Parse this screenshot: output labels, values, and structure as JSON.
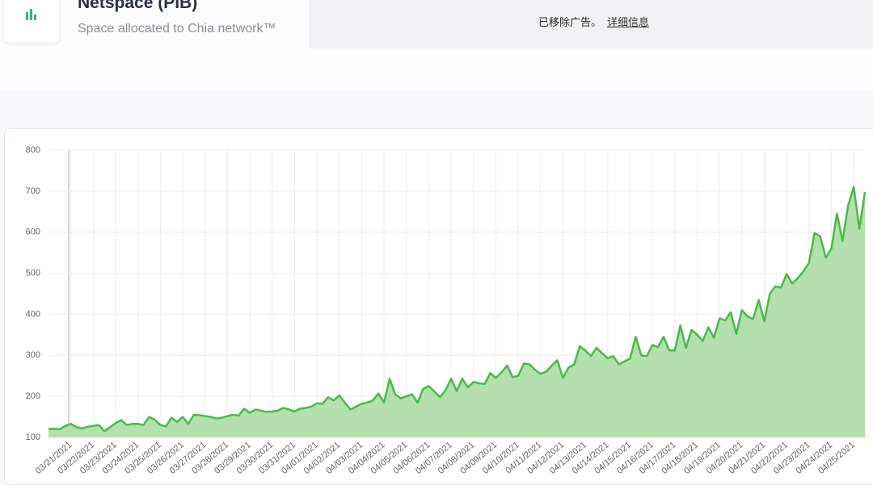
{
  "header": {
    "title": "Netspace (PIB)",
    "subtitle": "Space allocated to Chia network™"
  },
  "ad": {
    "text": "已移除广告。",
    "link": "详细信息"
  },
  "chart_data": {
    "type": "line",
    "color": "#4cb84c",
    "fill": "#b3e0ac",
    "categories": [
      null,
      null,
      null,
      null,
      "03/21/2021",
      null,
      null,
      null,
      "03/22/2021",
      null,
      null,
      null,
      "03/23/2021",
      null,
      null,
      null,
      "03/24/2021",
      null,
      null,
      null,
      "03/25/2021",
      null,
      null,
      null,
      "03/26/2021",
      null,
      null,
      null,
      "03/27/2021",
      null,
      null,
      null,
      "03/28/2021",
      null,
      null,
      null,
      "03/29/2021",
      null,
      null,
      null,
      "03/30/2021",
      null,
      null,
      null,
      "03/31/2021",
      null,
      null,
      null,
      "04/01/2021",
      null,
      null,
      null,
      "04/02/2021",
      null,
      null,
      null,
      "04/03/2021",
      null,
      null,
      null,
      "04/04/2021",
      null,
      null,
      null,
      "04/05/2021",
      null,
      null,
      null,
      "04/06/2021",
      null,
      null,
      null,
      "04/07/2021",
      null,
      null,
      null,
      "04/08/2021",
      null,
      null,
      null,
      "04/09/2021",
      null,
      null,
      null,
      "04/10/2021",
      null,
      null,
      null,
      "04/11/2021",
      null,
      null,
      null,
      "04/12/2021",
      null,
      null,
      null,
      "04/13/2021",
      null,
      null,
      null,
      "04/14/2021",
      null,
      null,
      null,
      "04/15/2021",
      null,
      null,
      null,
      "04/16/2021",
      null,
      null,
      null,
      "04/17/2021",
      null,
      null,
      null,
      "04/18/2021",
      null,
      null,
      null,
      "04/19/2021",
      null,
      null,
      null,
      "04/20/2021",
      null,
      null,
      null,
      "04/21/2021",
      null,
      null,
      null,
      "04/22/2021",
      null,
      null,
      null,
      "04/23/2021",
      null,
      null,
      null,
      "04/24/2021",
      null,
      null,
      null,
      "04/25/2021",
      null,
      null
    ],
    "values": [
      120,
      121,
      120,
      128,
      133,
      125,
      122,
      126,
      128,
      130,
      115,
      125,
      135,
      142,
      130,
      133,
      133,
      130,
      150,
      143,
      130,
      127,
      148,
      138,
      150,
      133,
      155,
      154,
      152,
      150,
      146,
      148,
      152,
      155,
      153,
      170,
      160,
      168,
      165,
      162,
      163,
      165,
      172,
      168,
      163,
      170,
      172,
      175,
      183,
      182,
      198,
      190,
      202,
      185,
      168,
      175,
      182,
      185,
      190,
      207,
      185,
      243,
      205,
      195,
      200,
      205,
      185,
      218,
      225,
      212,
      198,
      215,
      243,
      213,
      243,
      222,
      235,
      232,
      230,
      257,
      245,
      258,
      275,
      247,
      250,
      280,
      278,
      265,
      255,
      260,
      275,
      288,
      245,
      270,
      278,
      322,
      312,
      298,
      318,
      305,
      293,
      298,
      278,
      285,
      292,
      345,
      300,
      298,
      325,
      320,
      345,
      312,
      312,
      373,
      318,
      362,
      350,
      335,
      368,
      343,
      390,
      385,
      405,
      352,
      410,
      395,
      388,
      435,
      383,
      450,
      468,
      465,
      498,
      475,
      488,
      505,
      525,
      598,
      590,
      538,
      560,
      645,
      578,
      665,
      710,
      608,
      698
    ],
    "ylim": [
      100,
      800
    ],
    "yticks": [
      100,
      200,
      300,
      400,
      500,
      600,
      700,
      800
    ],
    "grid": true
  }
}
